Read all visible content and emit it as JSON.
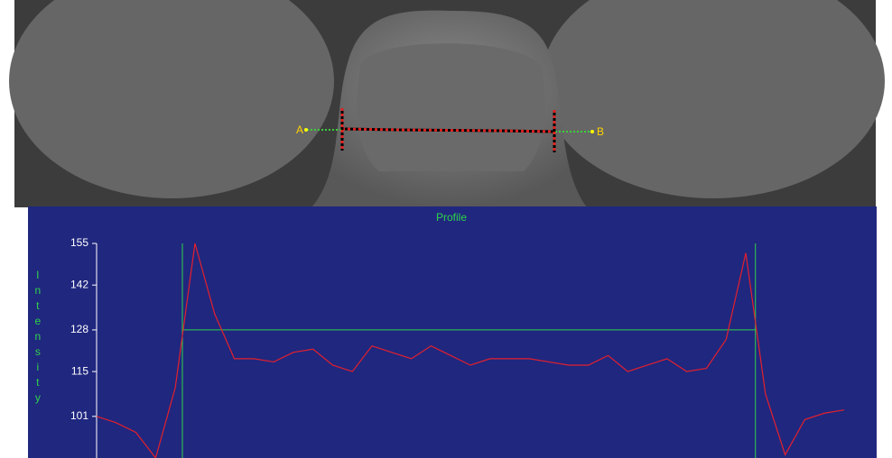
{
  "image": {
    "labels": [
      "A",
      "B"
    ]
  },
  "chart_data": {
    "type": "line",
    "title": "Profile",
    "ylabel": "Intensity",
    "x": [
      0,
      1,
      2,
      3,
      4,
      5,
      6,
      7,
      8,
      9,
      10,
      11,
      12,
      13,
      14,
      15,
      16,
      17,
      18,
      19,
      20,
      21,
      22,
      23,
      24,
      25,
      26,
      27,
      28,
      29,
      30,
      31,
      32,
      33,
      34,
      35,
      36,
      37,
      38
    ],
    "series": [
      {
        "color": "#e3202c",
        "values": [
          101,
          99,
          96,
          88,
          110,
          155,
          133,
          119,
          119,
          118,
          121,
          122,
          117,
          115,
          123,
          121,
          119,
          123,
          120,
          117,
          119,
          119,
          119,
          118,
          117,
          117,
          120,
          115,
          117,
          119,
          115,
          116,
          125,
          152,
          108,
          89,
          100,
          102,
          103
        ]
      }
    ],
    "xlim": [
      0,
      38
    ],
    "ylim": [
      88,
      155
    ],
    "yticks": [
      101,
      115,
      128,
      142,
      155
    ],
    "boundaries": [
      4.36,
      33.49
    ],
    "threshold": 128,
    "marker_color": "#2fd34a"
  }
}
